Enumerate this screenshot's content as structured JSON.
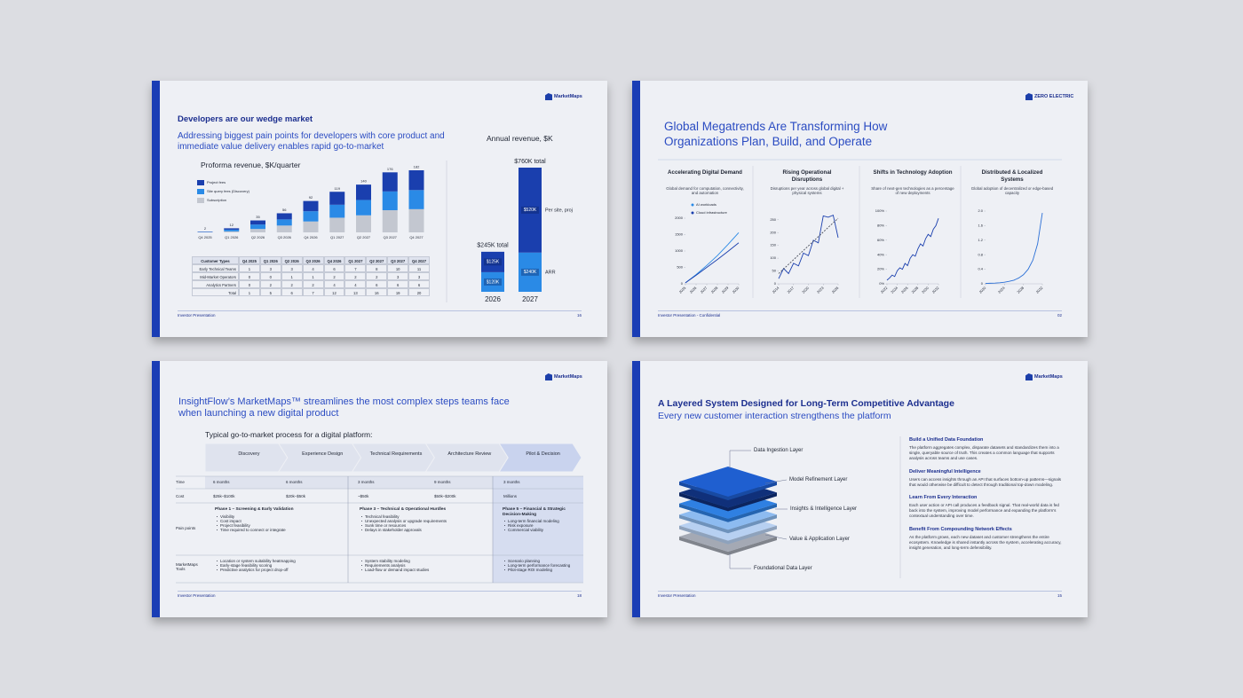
{
  "slides": [
    {
      "logo": "MarketMaps",
      "title": "Developers are our wedge market",
      "subtitle": "Addressing biggest pain points for developers with core product and immediate value delivery enables rapid go-to-market",
      "charts": [
        {
          "type": "bar",
          "stacked": true,
          "title": "Proforma revenue, $K/quarter",
          "categories": [
            "Q4 2025",
            "Q1 2026",
            "Q2 2026",
            "Q3 2026",
            "Q4 2026",
            "Q1 2027",
            "Q2 2027",
            "Q3 2027",
            "Q4 2027"
          ],
          "series": [
            {
              "name": "Project fees",
              "color": "#1a3fae",
              "values": [
                1,
                4,
                12,
                18,
                30,
                38,
                45,
                56,
                58
              ]
            },
            {
              "name": "Site query fees (Discovery)",
              "color": "#2a8ae6",
              "values": [
                1,
                5,
                13,
                18,
                30,
                38,
                45,
                55,
                56
              ]
            },
            {
              "name": "Subscription",
              "color": "#c3c7d0",
              "values": [
                0,
                3,
                10,
                20,
                32,
                43,
                50,
                65,
                68
              ]
            }
          ],
          "totals": [
            2,
            12,
            35,
            56,
            92,
            119,
            140,
            176,
            182
          ]
        },
        {
          "type": "bar",
          "stacked": true,
          "title": "Annual revenue, $K",
          "categories": [
            "2026",
            "2027"
          ],
          "series": [
            {
              "name": "ARR",
              "color": "#2a8ae6",
              "values": [
                120,
                240
              ],
              "value_labels": [
                "$120K",
                "$240K"
              ]
            },
            {
              "name": "Per site, proj",
              "color": "#1a3fae",
              "values": [
                125,
                520
              ],
              "value_labels": [
                "$125K",
                "$520K"
              ]
            }
          ],
          "total_labels": [
            "$245K total",
            "$760K total"
          ]
        }
      ],
      "table": {
        "header": [
          "Customer Types",
          "Q4 2025",
          "Q1 2026",
          "Q2 2026",
          "Q3 2026",
          "Q4 2026",
          "Q1 2027",
          "Q2 2027",
          "Q3 2027",
          "Q4 2027"
        ],
        "rows": [
          [
            "Early Technical Teams",
            1,
            3,
            3,
            4,
            6,
            7,
            8,
            10,
            11
          ],
          [
            "Mid-Market Operators",
            0,
            0,
            1,
            1,
            2,
            2,
            2,
            3,
            3
          ],
          [
            "Analytics Partners",
            0,
            2,
            2,
            2,
            4,
            4,
            6,
            6,
            6
          ],
          [
            "Total",
            1,
            5,
            6,
            7,
            12,
            13,
            16,
            19,
            20
          ]
        ]
      },
      "footer": "Investor Presentation",
      "page": "16"
    },
    {
      "logo": "ZERO ELECTRIC",
      "title": "Global Megatrends Are Transforming How Organizations Plan, Build, and Operate",
      "charts": [
        {
          "type": "line",
          "title": "Accelerating Digital Demand",
          "subtitle": "Global demand for computation, connectivity, and automation",
          "x": [
            2025,
            2026,
            2027,
            2028,
            2029,
            2030
          ],
          "xlim": [
            2025,
            2030
          ],
          "xticks": [
            2025,
            2026,
            2027,
            2028,
            2029,
            2030
          ],
          "ylim": [
            0,
            2000
          ],
          "yticks": [
            0,
            500,
            1000,
            1500,
            2000
          ],
          "series": [
            {
              "name": "AI workloads",
              "color": "#2a8ae6",
              "values": [
                30,
                280,
                560,
                860,
                1200,
                1560
              ]
            },
            {
              "name": "Cloud infrastructure",
              "color": "#1a3fae",
              "values": [
                30,
                260,
                500,
                740,
                990,
                1250
              ]
            }
          ]
        },
        {
          "type": "line",
          "title": "Rising Operational Disruptions",
          "subtitle": "Disruptions per year across global digital + physical systems",
          "x": [
            2014,
            2015,
            2016,
            2017,
            2018,
            2019,
            2020,
            2021,
            2022,
            2023,
            2024,
            2025,
            2026
          ],
          "xlim": [
            2014,
            2026
          ],
          "xticks": [
            2014,
            2017,
            2020,
            2023,
            2026
          ],
          "ylim": [
            0,
            270
          ],
          "yticks": [
            0,
            50,
            100,
            150,
            200,
            250
          ],
          "series": [
            {
              "color": "#1a3fae",
              "values": [
                20,
                60,
                40,
                80,
                70,
                120,
                110,
                170,
                160,
                265,
                260,
                268,
                180
              ]
            },
            {
              "color": "#4a4f5c",
              "dashed": true,
              "values": [
                40,
                58,
                76,
                94,
                112,
                130,
                148,
                166,
                184,
                202,
                220,
                238,
                256
              ]
            }
          ]
        },
        {
          "type": "line",
          "title": "Shifts in Technology Adoption",
          "subtitle": "Share of next-gen technologies as a percentage of new deployments",
          "x": [
            2022,
            2022.5,
            2023,
            2023.5,
            2024,
            2024.5,
            2025,
            2025.5,
            2026,
            2026.5,
            2027,
            2027.5,
            2028,
            2028.5,
            2029,
            2029.5,
            2030,
            2030.5,
            2031,
            2031.5,
            2032
          ],
          "xlim": [
            2022,
            2032
          ],
          "xticks": [
            2022,
            2024,
            2026,
            2028,
            2030,
            2032
          ],
          "ylim": [
            0,
            100
          ],
          "yticks": [
            {
              "value": 0,
              "label": "0%"
            },
            {
              "value": 20,
              "label": "20%"
            },
            {
              "value": 40,
              "label": "40%"
            },
            {
              "value": 60,
              "label": "60%"
            },
            {
              "value": 80,
              "label": "80%"
            },
            {
              "value": 100,
              "label": "100%"
            }
          ],
          "series": [
            {
              "color": "#1a3fae",
              "values": [
                5,
                8,
                12,
                10,
                18,
                22,
                20,
                28,
                25,
                35,
                40,
                38,
                48,
                55,
                52,
                62,
                68,
                65,
                75,
                80,
                90
              ]
            }
          ]
        },
        {
          "type": "line",
          "title": "Distributed & Localized Systems",
          "subtitle": "Global adoption of decentralized or edge-based capacity",
          "x": [
            2020,
            2021,
            2022,
            2023,
            2024,
            2025,
            2026,
            2027,
            2028,
            2029,
            2030,
            2031,
            2032
          ],
          "xlim": [
            2020,
            2032
          ],
          "xticks": [
            2020,
            2024,
            2028,
            2032
          ],
          "ylim": [
            0,
            2
          ],
          "yticks": [
            0,
            0.4,
            0.8,
            1.2,
            1.6,
            {
              "value": 2,
              "label": "2.0"
            }
          ],
          "series": [
            {
              "color": "#2a6fd6",
              "values": [
                0.01,
                0.015,
                0.02,
                0.03,
                0.045,
                0.07,
                0.1,
                0.16,
                0.25,
                0.4,
                0.65,
                1.1,
                1.95
              ]
            }
          ]
        }
      ],
      "footer": "Investor Presentation - Confidential",
      "page": "02"
    },
    {
      "logo": "MarketMaps",
      "title": "InsightFlow’s MarketMaps™ streamlines the most complex steps teams face when launching a new digital product",
      "intro": "Typical go-to-market process for a digital platform:",
      "steps": [
        "Discovery",
        "Experience Design",
        "Technical Requirements",
        "Architecture Review",
        "Pilot & Decision"
      ],
      "table": {
        "time": {
          "label": "Time",
          "values": [
            "6 months",
            "6 months",
            "3 months",
            "9 months",
            "3 months"
          ]
        },
        "cost": {
          "label": "Cost",
          "values": [
            "$25k–$100k",
            "$20k–$50k",
            "~$50k",
            "$50k–$200k",
            "Millions"
          ]
        },
        "pain_points": {
          "label": "Pain points",
          "columns": [
            {
              "heading": "Phase 1 – Screening & Early Validation",
              "items": [
                "Visibility",
                "Cost impact",
                "Project feasibility",
                "Time required to connect or integrate"
              ]
            },
            {
              "heading": "Phase 3 – Technical & Operational Hurdles",
              "items": [
                "Technical feasibility",
                "Unexpected analysis or upgrade requirements",
                "Sunk time or resources",
                "Delays in stakeholder approvals"
              ]
            },
            {
              "heading": "Phase 5 – Financial & Strategic Decision-Making",
              "items": [
                "Long-term financial modeling",
                "Risk exposure",
                "Commercial viability"
              ]
            }
          ]
        },
        "tools": {
          "label": "MarketMaps Tools",
          "columns": [
            {
              "items": [
                "Location or system suitability heatmapping",
                "Early-stage feasibility scoring",
                "Predictive analytics for project drop-off"
              ]
            },
            {
              "items": [
                "System stability modeling",
                "Requirements analysis",
                "Load-flow or demand impact studies"
              ]
            },
            {
              "items": [
                "Scenario planning",
                "Long-term performance forecasting",
                "Pilot-stage ROI modeling"
              ]
            }
          ]
        }
      },
      "footer": "Investor Presentation",
      "page": "18"
    },
    {
      "logo": "MarketMaps",
      "title": "A Layered System Designed for Long-Term Competitive Advantage",
      "subtitle": "Every new customer interaction strengthens the platform",
      "layers": [
        "Data Ingestion Layer",
        "Model Refinement Layer",
        "Insights & Intelligence Layer",
        "Value & Application Layer",
        "Foundational Data Layer"
      ],
      "points": [
        {
          "heading": "Build a Unified Data Foundation",
          "text": "The platform aggregates complex, disparate datasets and standardizes them into a single, queryable source of truth. This creates a common language that supports analysis across teams and use cases."
        },
        {
          "heading": "Deliver Meaningful Intelligence",
          "text": "Users can access insights through an API that surfaces bottom-up patterns—signals that would otherwise be difficult to detect through traditional top-down modeling."
        },
        {
          "heading": "Learn From Every Interaction",
          "text": "Each user action or API call produces a feedback signal. That real-world data is fed back into the system, improving model performance and expanding the platform’s contextual understanding over time."
        },
        {
          "heading": "Benefit From Compounding Network Effects",
          "text": "As the platform grows, each new dataset and customer strengthens the entire ecosystem. Knowledge is shared instantly across the system, accelerating accuracy, insight generation, and long-term defensibility."
        }
      ],
      "footer": "Investor Presentation",
      "page": "15"
    }
  ]
}
